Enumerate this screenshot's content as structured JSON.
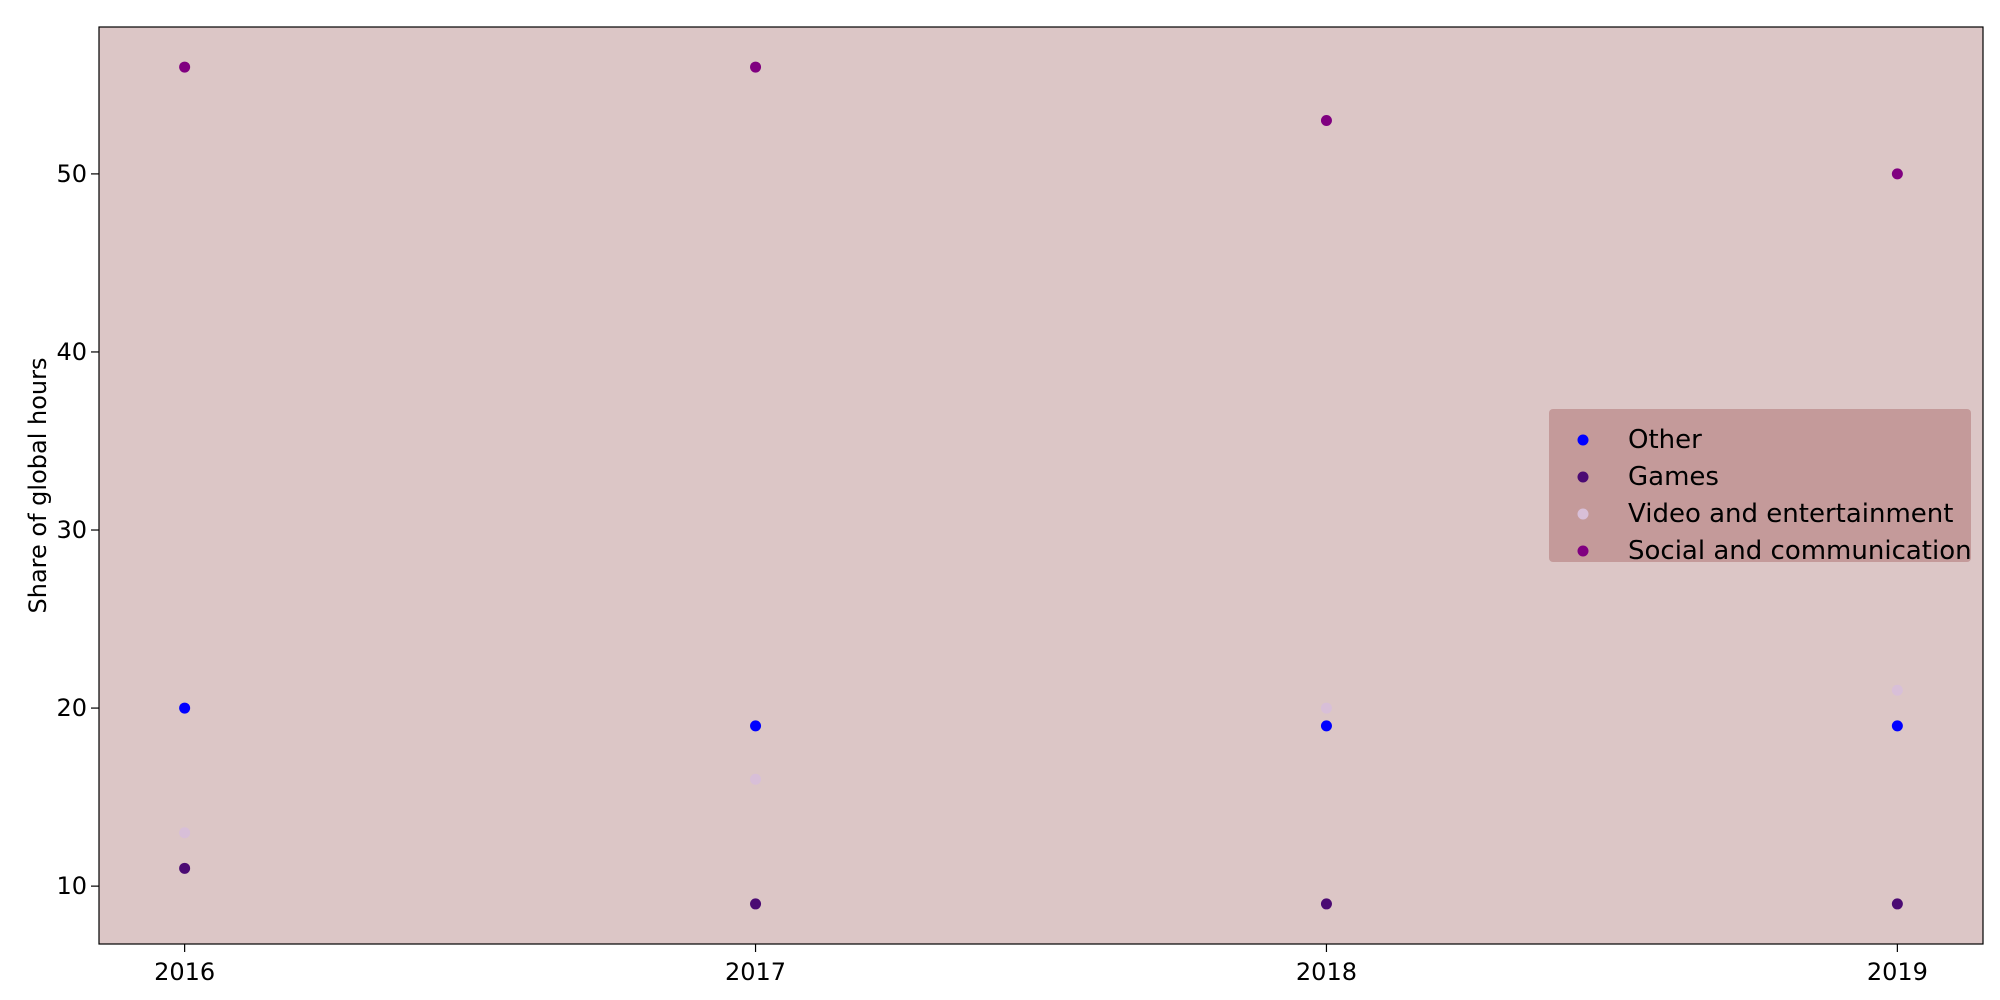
{
  "chart_data": {
    "type": "scatter",
    "title": "",
    "xlabel": "",
    "ylabel": "Share of global hours",
    "x": [
      2016,
      2017,
      2018,
      2019
    ],
    "xticks": [
      "2016",
      "2017",
      "2018",
      "2019"
    ],
    "yticks": [
      10,
      20,
      30,
      40,
      50
    ],
    "xlim": [
      2015.85,
      2019.15
    ],
    "ylim": [
      6.75,
      58.25
    ],
    "grid": false,
    "legend_position": "center-right",
    "plot_background": "#dcc6c6",
    "legend_background": "#c49a9a",
    "series": [
      {
        "name": "Other",
        "color": "#0000ff",
        "values": [
          20,
          19,
          19,
          19
        ]
      },
      {
        "name": "Games",
        "color": "#4b0a73",
        "values": [
          11,
          9,
          9,
          9
        ]
      },
      {
        "name": "Video and entertainment",
        "color": "#d8bfd8",
        "values": [
          13,
          16,
          20,
          21
        ]
      },
      {
        "name": "Social and communication",
        "color": "#800080",
        "values": [
          56,
          56,
          53,
          50
        ]
      }
    ]
  }
}
